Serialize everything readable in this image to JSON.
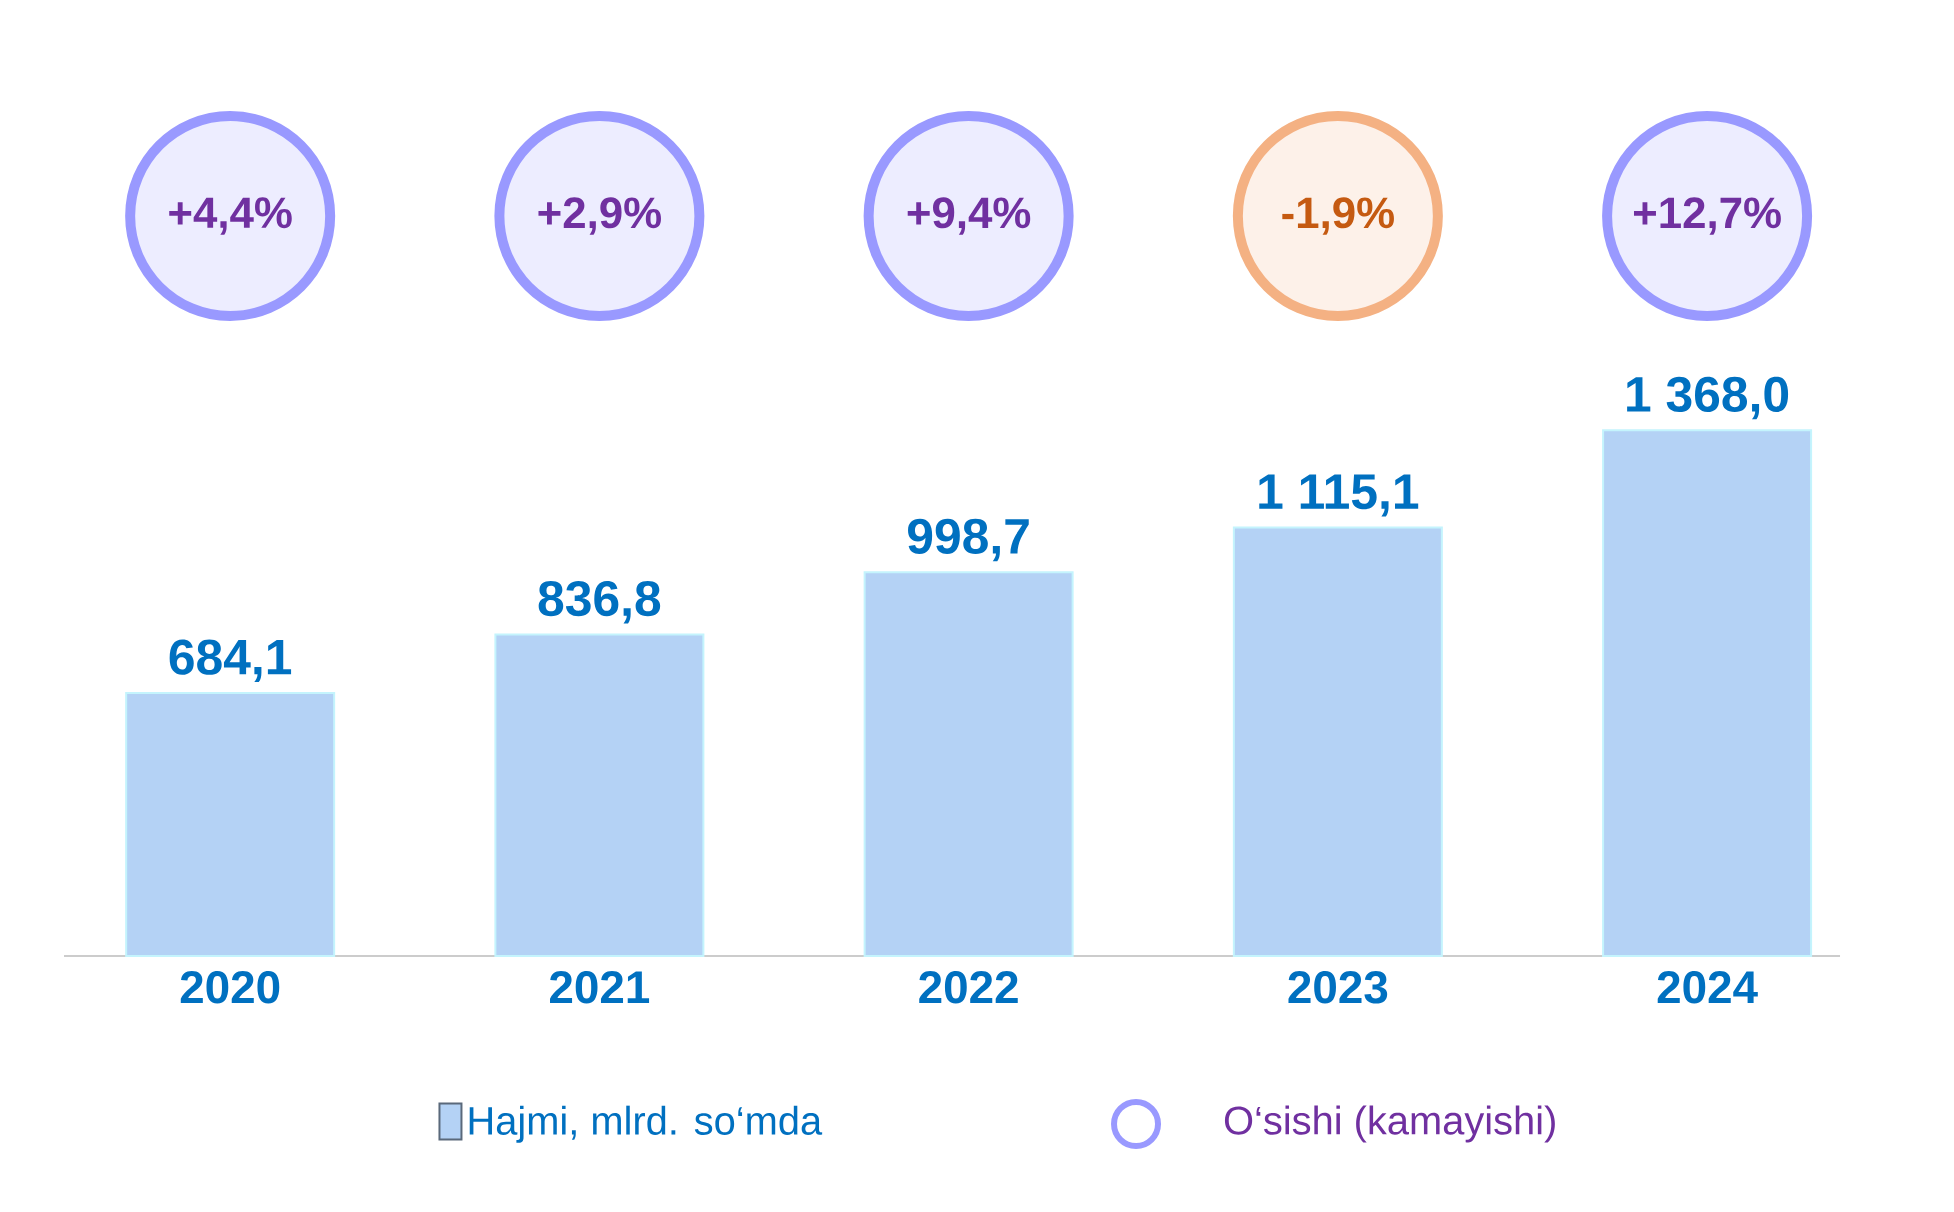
{
  "chart_data": {
    "type": "bar",
    "categories": [
      "2020",
      "2021",
      "2022",
      "2023",
      "2024"
    ],
    "legend": "bottom",
    "series": [
      {
        "name": "Hajmi, mlrd. so‘mda",
        "color": "#b4d2f5",
        "values": [
          684.1,
          836.8,
          998.7,
          1115.1,
          1368.0
        ],
        "value_labels": [
          "684,1",
          "836,8",
          "998,7",
          "1 115,1",
          "1 368,0"
        ]
      }
    ],
    "annotations": [
      "O‘sishi (kamayishi)",
      "+4,4%",
      "+2,9%",
      "+9,4%",
      "-1,9%",
      "+12,7%"
    ]
  }
}
